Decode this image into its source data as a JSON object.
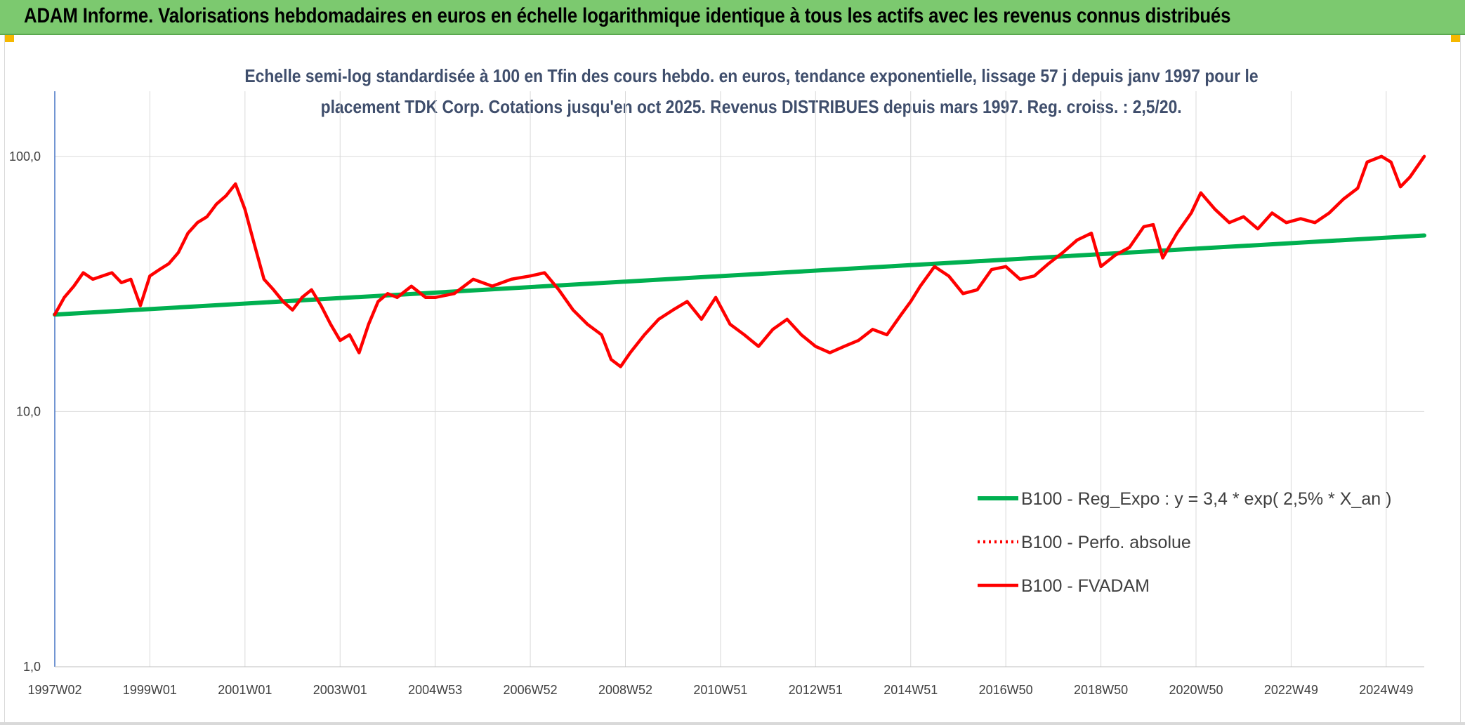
{
  "banner": {
    "title": "ADAM Informe. Valorisations hebdomadaires en euros en échelle logarithmique identique à tous les actifs avec les revenus connus distribués"
  },
  "chart_data": {
    "type": "line",
    "title_line1": "Echelle semi-log standardisée à 100 en Tfin des cours hebdo. en euros, tendance exponentielle, lissage 57 j depuis janv 1997 pour le",
    "title_line2": "placement TDK Corp. Cotations jusqu'en oct 2025. Revenus DISTRIBUES depuis mars 1997. Reg. croiss. : 2,5/20.",
    "y_scale": "log",
    "ylim": [
      1,
      180
    ],
    "y_ticks": [
      {
        "value": 1,
        "label": "1,0"
      },
      {
        "value": 10,
        "label": "10,0"
      },
      {
        "value": 100,
        "label": "100,0"
      }
    ],
    "x_range": [
      1997.0,
      2025.8
    ],
    "x_ticks": [
      {
        "value": 1997.0,
        "label": "1997W02"
      },
      {
        "value": 1999.0,
        "label": "1999W01"
      },
      {
        "value": 2001.0,
        "label": "2001W01"
      },
      {
        "value": 2003.0,
        "label": "2003W01"
      },
      {
        "value": 2005.0,
        "label": "2004W53"
      },
      {
        "value": 2007.0,
        "label": "2006W52"
      },
      {
        "value": 2009.0,
        "label": "2008W52"
      },
      {
        "value": 2011.0,
        "label": "2010W51"
      },
      {
        "value": 2013.0,
        "label": "2012W51"
      },
      {
        "value": 2015.0,
        "label": "2014W51"
      },
      {
        "value": 2017.0,
        "label": "2016W50"
      },
      {
        "value": 2019.0,
        "label": "2018W50"
      },
      {
        "value": 2021.0,
        "label": "2020W50"
      },
      {
        "value": 2023.0,
        "label": "2022W49"
      },
      {
        "value": 2025.0,
        "label": "2024W49"
      }
    ],
    "grid": "vertical-and-horizontal",
    "legend_position": "bottom-right",
    "series": [
      {
        "name": "B100 - Reg_Expo : y = 3,4 * exp( 2,5% *  X_an )",
        "color": "#00b050",
        "style": "solid",
        "x": [
          1997.0,
          2025.8
        ],
        "y": [
          24.0,
          49.0
        ]
      },
      {
        "name": "B100 - Perfo. absolue",
        "color": "#ff0000",
        "style": "dotted",
        "x": [],
        "y": []
      },
      {
        "name": "B100 - FVADAM",
        "color": "#ff0000",
        "style": "solid",
        "x": [
          1997.0,
          1997.2,
          1997.4,
          1997.6,
          1997.8,
          1998.0,
          1998.2,
          1998.4,
          1998.6,
          1998.8,
          1999.0,
          1999.2,
          1999.4,
          1999.6,
          1999.8,
          2000.0,
          2000.2,
          2000.4,
          2000.6,
          2000.8,
          2001.0,
          2001.2,
          2001.4,
          2001.6,
          2001.8,
          2002.0,
          2002.2,
          2002.4,
          2002.6,
          2002.8,
          2003.0,
          2003.2,
          2003.4,
          2003.6,
          2003.8,
          2004.0,
          2004.2,
          2004.5,
          2004.8,
          2005.0,
          2005.4,
          2005.8,
          2006.2,
          2006.6,
          2007.0,
          2007.3,
          2007.6,
          2007.9,
          2008.2,
          2008.5,
          2008.7,
          2008.9,
          2009.1,
          2009.4,
          2009.7,
          2010.0,
          2010.3,
          2010.6,
          2010.9,
          2011.2,
          2011.5,
          2011.8,
          2012.1,
          2012.4,
          2012.7,
          2013.0,
          2013.3,
          2013.6,
          2013.9,
          2014.2,
          2014.5,
          2014.8,
          2015.0,
          2015.2,
          2015.5,
          2015.8,
          2016.1,
          2016.4,
          2016.7,
          2017.0,
          2017.3,
          2017.6,
          2017.9,
          2018.2,
          2018.5,
          2018.8,
          2019.0,
          2019.3,
          2019.6,
          2019.9,
          2020.1,
          2020.3,
          2020.6,
          2020.9,
          2021.1,
          2021.4,
          2021.7,
          2022.0,
          2022.3,
          2022.6,
          2022.9,
          2023.2,
          2023.5,
          2023.8,
          2024.1,
          2024.4,
          2024.6,
          2024.9,
          2025.1,
          2025.3,
          2025.5,
          2025.8
        ],
        "y": [
          24.0,
          28.0,
          31.0,
          35.0,
          33.0,
          34.0,
          35.0,
          32.0,
          33.0,
          26.0,
          34.0,
          36.0,
          38.0,
          42.0,
          50.0,
          55.0,
          58.0,
          65.0,
          70.0,
          78.0,
          62.0,
          45.0,
          33.0,
          30.0,
          27.0,
          25.0,
          28.0,
          30.0,
          26.0,
          22.0,
          19.0,
          20.0,
          17.0,
          22.0,
          27.0,
          29.0,
          28.0,
          31.0,
          28.0,
          28.0,
          29.0,
          33.0,
          31.0,
          33.0,
          34.0,
          35.0,
          30.0,
          25.0,
          22.0,
          20.0,
          16.0,
          15.0,
          17.0,
          20.0,
          23.0,
          25.0,
          27.0,
          23.0,
          28.0,
          22.0,
          20.0,
          18.0,
          21.0,
          23.0,
          20.0,
          18.0,
          17.0,
          18.0,
          19.0,
          21.0,
          20.0,
          24.0,
          27.0,
          31.0,
          37.0,
          34.0,
          29.0,
          30.0,
          36.0,
          37.0,
          33.0,
          34.0,
          38.0,
          42.0,
          47.0,
          50.0,
          37.0,
          41.0,
          44.0,
          53.0,
          54.0,
          40.0,
          50.0,
          60.0,
          72.0,
          62.0,
          55.0,
          58.0,
          52.0,
          60.0,
          55.0,
          57.0,
          55.0,
          60.0,
          68.0,
          75.0,
          95.0,
          100.0,
          95.0,
          76.0,
          83.0,
          100.0
        ]
      }
    ]
  }
}
